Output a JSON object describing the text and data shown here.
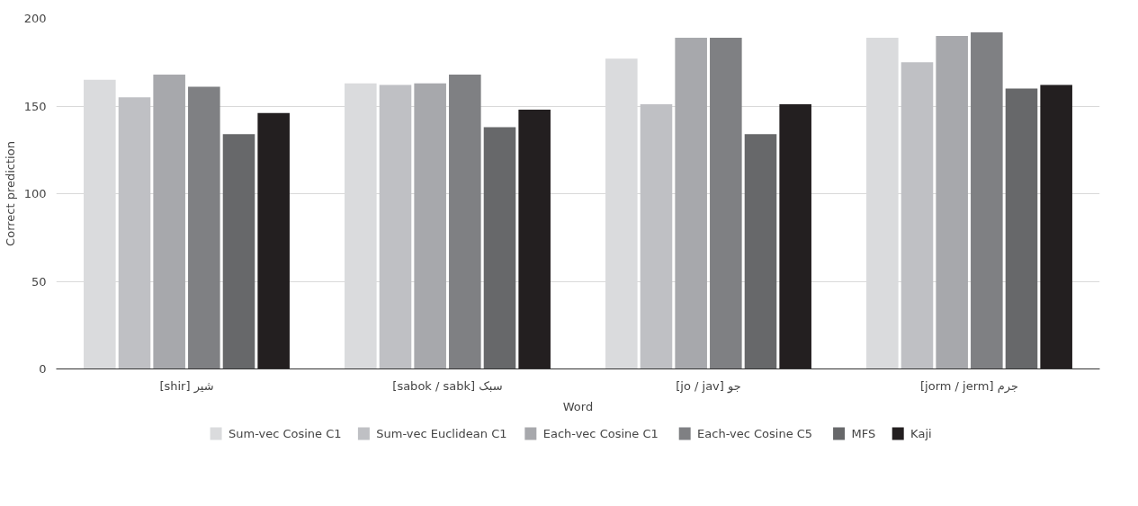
{
  "chart_data": {
    "type": "bar",
    "xlabel": "Word",
    "ylabel": "Correct prediction",
    "categories": [
      "[shir] شیر",
      "[sabok / sabk] سبک",
      "[jo / jav] جو",
      "[jorm / jerm] جرم"
    ],
    "series": [
      {
        "name": "Sum-vec Cosine C1",
        "color": "#dadbdd",
        "values": [
          165,
          163,
          177,
          189
        ]
      },
      {
        "name": "Sum-vec Euclidean C1",
        "color": "#bfc0c4",
        "values": [
          155,
          162,
          151,
          175
        ]
      },
      {
        "name": "Each-vec Cosine C1",
        "color": "#a7a8ac",
        "values": [
          168,
          163,
          189,
          190
        ]
      },
      {
        "name": "Each-vec Cosine C5",
        "color": "#7f8083",
        "values": [
          161,
          168,
          189,
          192
        ]
      },
      {
        "name": "MFS",
        "color": "#67686a",
        "values": [
          134,
          138,
          134,
          160
        ]
      },
      {
        "name": "Kaji",
        "color": "#231f20",
        "values": [
          146,
          148,
          151,
          162
        ]
      }
    ],
    "ylim": [
      0,
      200
    ],
    "yticks": [
      0,
      50,
      100,
      150,
      200
    ],
    "grid": "y",
    "legend": "bottom"
  }
}
